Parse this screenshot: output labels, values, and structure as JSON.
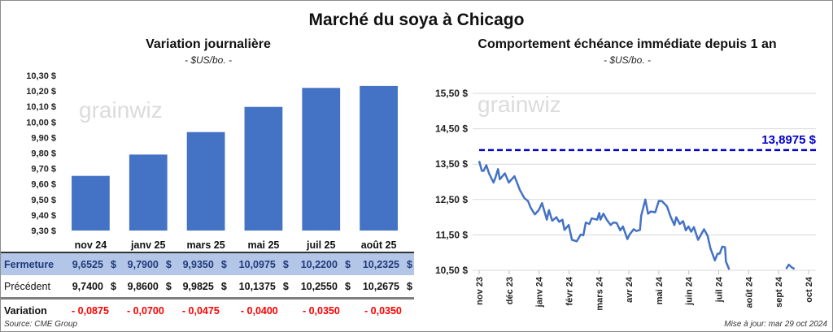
{
  "title": "Marché du soya à Chicago",
  "left": {
    "subtitle": "Variation journalière",
    "unit": "- $US/bo. -",
    "logo": "grainwiz"
  },
  "right": {
    "subtitle": "Comportement échéance immédiate depuis 1 an",
    "unit": "- $US/bo. -",
    "logo": "grainwiz"
  },
  "table": {
    "rows": [
      {
        "label": "Fermeture",
        "values": [
          "9,6525",
          "9,7900",
          "9,9350",
          "10,0975",
          "10,2200",
          "10,2325"
        ]
      },
      {
        "label": "Précédent",
        "values": [
          "9,7400",
          "9,8600",
          "9,9825",
          "10,1375",
          "10,2550",
          "10,2675"
        ]
      },
      {
        "label": "Variation",
        "values": [
          "- 0,0875",
          "- 0,0700",
          "- 0,0475",
          "- 0,0400",
          "- 0,0350",
          "- 0,0350"
        ]
      }
    ],
    "currency": "$"
  },
  "footer": {
    "source": "Source: CME Group",
    "updated": "Mise à jour: mar 29 oct 2024"
  },
  "colors": {
    "bar": "#4472c4",
    "line": "#4472c4",
    "ref": "#0000cc",
    "negative": "#ff0000"
  },
  "chart_data": [
    {
      "type": "bar",
      "title": "Variation journalière",
      "categories": [
        "nov 24",
        "janv 25",
        "mars 25",
        "mai 25",
        "juil 25",
        "août 25"
      ],
      "values": [
        9.6525,
        9.79,
        9.935,
        10.0975,
        10.22,
        10.2325
      ],
      "ylim": [
        9.3,
        10.3
      ],
      "yticks": [
        "9,30 $",
        "9,40 $",
        "9,50 $",
        "9,60 $",
        "9,70 $",
        "9,80 $",
        "9,90 $",
        "10,00 $",
        "10,10 $",
        "10,20 $",
        "10,30 $"
      ],
      "grid": false
    },
    {
      "type": "line",
      "title": "Comportement échéance immédiate depuis 1 an",
      "xticks": [
        "nov 23",
        "déc 23",
        "janv 24",
        "févr 24",
        "mars 24",
        "avr 24",
        "mai 24",
        "juin 24",
        "juil 24",
        "août 24",
        "sept 24",
        "oct 24"
      ],
      "yticks": [
        "10,50 $",
        "11,50 $",
        "12,50 $",
        "13,50 $",
        "14,50 $",
        "15,50 $"
      ],
      "ylim": [
        10.5,
        15.5
      ],
      "grid": true,
      "reference_line": {
        "value": 13.8975,
        "label": "13,8975 $"
      },
      "series": [
        {
          "name": "segment1",
          "x_months": [
            0,
            0.09,
            0.15,
            0.24,
            0.33,
            0.48,
            0.54,
            0.63,
            0.69,
            0.86,
            0.99,
            1.18,
            1.36,
            1.51,
            1.63,
            1.72,
            1.86,
            1.99,
            2.1,
            2.26,
            2.33,
            2.44,
            2.58,
            2.67,
            2.78,
            2.85,
            2.99,
            3.1,
            3.26,
            3.39,
            3.48,
            3.56,
            3.68,
            3.76,
            3.94,
            4.01,
            4.05,
            4.15,
            4.26,
            4.39,
            4.48,
            4.59,
            4.71,
            4.8,
            4.95,
            5.02,
            5.16,
            5.25,
            5.37,
            5.41,
            5.55,
            5.64,
            5.73,
            5.88,
            6.0,
            6.11,
            6.27,
            6.4,
            6.52,
            6.58,
            6.7,
            6.81,
            6.9,
            6.99,
            7.08,
            7.17,
            7.31,
            7.51,
            7.63,
            7.72,
            7.87,
            7.96,
            8.03,
            8.12,
            8.21,
            8.24,
            8.35
          ],
          "values": [
            13.59,
            13.31,
            13.31,
            13.47,
            13.24,
            12.98,
            13.11,
            13.36,
            13.07,
            13.24,
            12.98,
            13.16,
            12.77,
            12.54,
            12.46,
            12.27,
            12.08,
            12.2,
            12.4,
            11.93,
            12.2,
            11.9,
            12.0,
            11.87,
            11.93,
            11.64,
            11.78,
            11.36,
            11.32,
            11.51,
            11.49,
            11.85,
            11.81,
            11.97,
            11.93,
            12.12,
            11.93,
            12.1,
            11.93,
            11.78,
            11.85,
            11.84,
            11.63,
            11.74,
            11.38,
            11.51,
            11.66,
            11.61,
            11.64,
            12.04,
            12.5,
            12.1,
            12.16,
            12.14,
            12.46,
            12.45,
            12.31,
            12.0,
            11.78,
            12.0,
            11.81,
            11.89,
            11.63,
            11.74,
            11.59,
            11.72,
            11.36,
            11.66,
            11.47,
            11.13,
            10.78,
            10.97,
            10.97,
            11.17,
            11.15,
            10.75,
            10.52
          ]
        },
        {
          "name": "segment2",
          "x_months": [
            10.25,
            10.34,
            10.44,
            10.53
          ],
          "values": [
            10.54,
            10.66,
            10.58,
            10.54
          ]
        }
      ]
    }
  ]
}
